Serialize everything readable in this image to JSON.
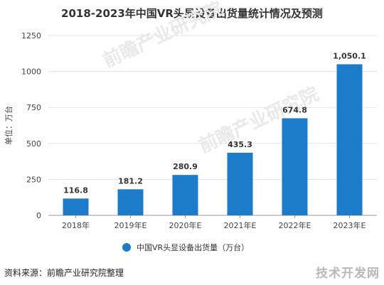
{
  "chart_data": {
    "type": "bar",
    "title": "2018-2023年中国VR头显设备出货量统计情况及预测",
    "ylabel": "单位：万台",
    "xlabel": "",
    "categories": [
      "2018年",
      "2019年E",
      "2020年E",
      "2021年E",
      "2022年E",
      "2023年E"
    ],
    "series": [
      {
        "name": "中国VR头显设备出货量（万台）",
        "values": [
          116.8,
          181.2,
          280.9,
          435.3,
          674.8,
          1050.1
        ]
      }
    ],
    "value_labels": [
      "116.8",
      "181.2",
      "280.9",
      "435.3",
      "674.8",
      "1,050.1"
    ],
    "ylim": [
      0,
      1250
    ],
    "yticks": [
      0,
      250,
      500,
      750,
      1000,
      1250
    ],
    "grid": true,
    "legend_position": "bottom",
    "bar_color": "#1c7cc9"
  },
  "footer": {
    "source": "资料来源：前瞻产业研究院整理",
    "watermark": "技术开发网"
  },
  "watermark_text": "前瞻产业研究院"
}
